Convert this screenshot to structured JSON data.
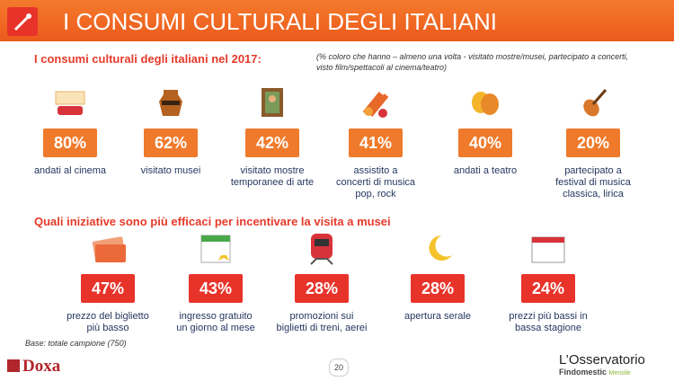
{
  "header": {
    "title": "I CONSUMI CULTURALI DEGLI ITALIANI"
  },
  "section1": {
    "title": "I consumi culturali degli italiani nel 2017:",
    "note": [
      "(% coloro che hanno – almeno una volta - visitato mostre/musei, partecipato a concerti,",
      "visto film/spettacoli al cinema/teatro)"
    ],
    "items": [
      {
        "value": "80%",
        "label": [
          "andati al cinema"
        ]
      },
      {
        "value": "62%",
        "label": [
          "visitato musei"
        ]
      },
      {
        "value": "42%",
        "label": [
          "visitato mostre",
          "temporanee di arte"
        ]
      },
      {
        "value": "41%",
        "label": [
          "assistito a",
          "concerti di musica",
          "pop, rock"
        ]
      },
      {
        "value": "40%",
        "label": [
          "andati a teatro"
        ]
      },
      {
        "value": "20%",
        "label": [
          "partecipato a",
          "festival di musica",
          "classica, lirica"
        ]
      }
    ]
  },
  "section2": {
    "title": "Quali iniziative sono più efficaci per incentivare la visita a musei",
    "items": [
      {
        "value": "47%",
        "label": [
          "prezzo del biglietto",
          "più basso"
        ]
      },
      {
        "value": "43%",
        "label": [
          "ingresso gratuito",
          "un giorno al mese"
        ]
      },
      {
        "value": "28%",
        "label": [
          "promozioni sui",
          "biglietti di treni, aerei"
        ]
      },
      {
        "value": "28%",
        "label": [
          "apertura serale"
        ]
      },
      {
        "value": "24%",
        "label": [
          "prezzi più bassi in",
          "bassa stagione"
        ]
      }
    ]
  },
  "footer": {
    "base": "Base: totale campione  (750)",
    "page": "20",
    "logo_left": "Doxa",
    "logo_right": "L’Osservatorio",
    "logo_right_sub": "Findomestic",
    "logo_right_tag": "Mensile"
  }
}
